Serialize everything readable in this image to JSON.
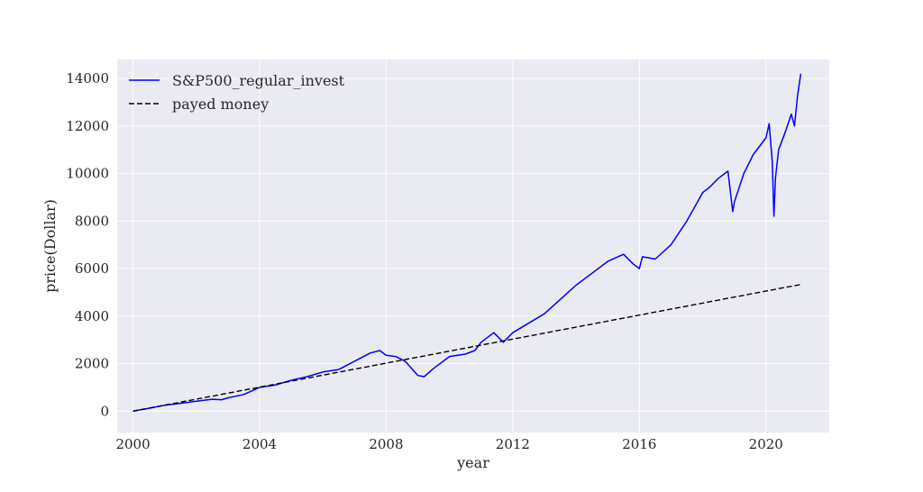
{
  "chart_data": {
    "type": "line",
    "title": "",
    "xlabel": "year",
    "ylabel": "price(Dollar)",
    "xlim": [
      1999.5,
      2022.0
    ],
    "ylim": [
      -900,
      14800
    ],
    "x_ticks": [
      2000,
      2004,
      2008,
      2012,
      2016,
      2020
    ],
    "x_tick_labels": [
      "2000",
      "2004",
      "2008",
      "2012",
      "2016",
      "2020"
    ],
    "y_ticks": [
      0,
      2000,
      4000,
      6000,
      8000,
      10000,
      12000,
      14000
    ],
    "y_tick_labels": [
      "0",
      "2000",
      "4000",
      "6000",
      "8000",
      "10000",
      "12000",
      "14000"
    ],
    "grid": true,
    "legend_position": "top-left",
    "background_color": "#eaeaf2",
    "series": [
      {
        "name": "S&P500_regular_invest",
        "color": "#0000ff",
        "style": "solid",
        "x": [
          2000.0,
          2000.5,
          2001.0,
          2001.5,
          2002.0,
          2002.5,
          2002.8,
          2003.0,
          2003.5,
          2004.0,
          2004.5,
          2005.0,
          2005.5,
          2006.0,
          2006.5,
          2007.0,
          2007.5,
          2007.8,
          2008.0,
          2008.3,
          2008.6,
          2008.8,
          2009.0,
          2009.2,
          2009.5,
          2010.0,
          2010.5,
          2010.8,
          2011.0,
          2011.4,
          2011.7,
          2012.0,
          2012.5,
          2013.0,
          2013.5,
          2014.0,
          2014.5,
          2015.0,
          2015.5,
          2015.8,
          2016.0,
          2016.1,
          2016.5,
          2017.0,
          2017.5,
          2018.0,
          2018.2,
          2018.5,
          2018.8,
          2018.95,
          2019.0,
          2019.3,
          2019.6,
          2020.0,
          2020.1,
          2020.2,
          2020.25,
          2020.3,
          2020.4,
          2020.6,
          2020.8,
          2020.9,
          2021.0,
          2021.1
        ],
        "y": [
          0,
          120,
          250,
          330,
          420,
          500,
          480,
          560,
          700,
          1000,
          1100,
          1300,
          1450,
          1650,
          1750,
          2100,
          2450,
          2550,
          2350,
          2300,
          2100,
          1800,
          1500,
          1450,
          1800,
          2300,
          2400,
          2550,
          2900,
          3300,
          2900,
          3300,
          3700,
          4100,
          4700,
          5300,
          5800,
          6300,
          6600,
          6200,
          6000,
          6500,
          6400,
          7000,
          8000,
          9200,
          9400,
          9800,
          10100,
          8400,
          8800,
          10000,
          10800,
          11500,
          12100,
          10500,
          8200,
          9800,
          11000,
          11700,
          12500,
          12000,
          13300,
          14200
        ]
      },
      {
        "name": "payed money",
        "color": "#000000",
        "style": "dashed",
        "x": [
          2000.0,
          2021.1
        ],
        "y": [
          0,
          5330
        ]
      }
    ]
  }
}
